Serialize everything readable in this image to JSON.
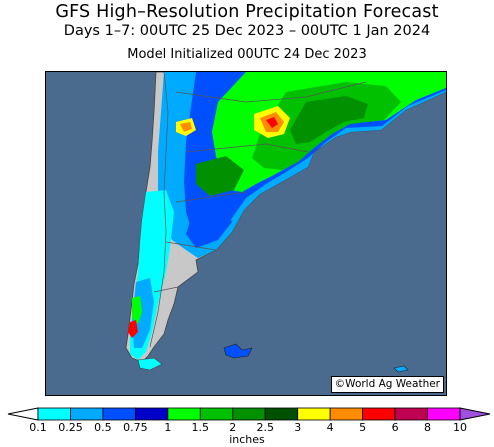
{
  "title": "GFS High–Resolution Precipitation Forecast",
  "subtitle": "Days 1–7: 00UTC 25 Dec 2023 – 00UTC 1 Jan 2024",
  "init_line": "Model Initialized 00UTC 24 Dec 2023",
  "credit": "©World Ag Weather",
  "colors": {
    "ocean": "#4a6b8d",
    "land": "#c8c8c8",
    "boundary": "#555555"
  },
  "legend": {
    "units": "inches",
    "ticks": [
      "0.1",
      "0.25",
      "0.5",
      "0.75",
      "1",
      "1.5",
      "2",
      "2.5",
      "3",
      "4",
      "5",
      "6",
      "8",
      "10"
    ],
    "colors": [
      "#00ffff",
      "#00aaff",
      "#0050ff",
      "#0000c8",
      "#00ff00",
      "#00c000",
      "#009000",
      "#005000",
      "#ffff00",
      "#ff8c00",
      "#ff0000",
      "#c00050",
      "#ff00ff",
      "#a050e0"
    ]
  }
}
